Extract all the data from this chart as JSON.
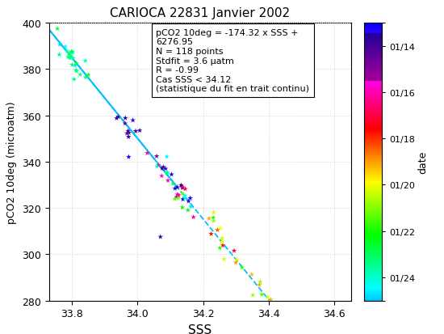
{
  "title": "CARIOCA 22831 Janvier 2002",
  "xlabel": "SSS",
  "ylabel": "pCO2 10deg (microatm)",
  "xlim": [
    33.73,
    34.65
  ],
  "ylim": [
    280,
    400
  ],
  "xticks": [
    33.8,
    34.0,
    34.2,
    34.4,
    34.6
  ],
  "yticks": [
    280,
    300,
    320,
    340,
    360,
    380,
    400
  ],
  "annotation": "pCO2 10deg = -174.32 x SSS +\n6276.95\nN = 118 points\nStdfit = 3.6 μatm\nR = -0.99\nCas SSS < 34.12\n(statistique du fit en trait continu)",
  "fit_slope": -174.32,
  "fit_intercept": 6276.95,
  "fit_sss_min": 33.73,
  "fit_sss_max": 34.12,
  "fit_sss_full_max": 34.65,
  "date_min": 13,
  "date_max": 25,
  "colorbar_label": "date",
  "background_color": "#ffffff",
  "grid_color": "#d0d0d0",
  "seed": 7
}
